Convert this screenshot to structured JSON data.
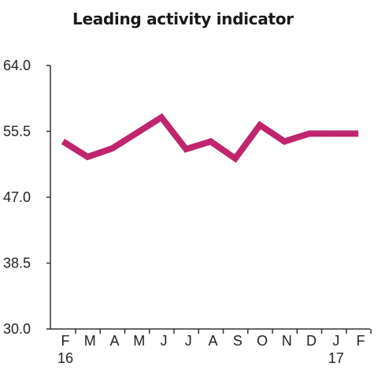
{
  "chart_data": {
    "type": "line",
    "title": "Leading activity indicator",
    "xlabel": "",
    "ylabel": "",
    "categories": [
      "F",
      "M",
      "A",
      "M",
      "J",
      "J",
      "A",
      "S",
      "O",
      "N",
      "D",
      "J",
      "F"
    ],
    "year_labels": [
      {
        "category_index": 0,
        "label": "16"
      },
      {
        "category_index": 11,
        "label": "17"
      }
    ],
    "series": [
      {
        "values": [
          54.2,
          52.2,
          53.3,
          55.3,
          57.3,
          53.2,
          54.2,
          52.0,
          56.3,
          54.2,
          55.2,
          55.2,
          55.2
        ]
      }
    ],
    "ylim": [
      30.0,
      64.0
    ],
    "yticks": [
      "64.0",
      "55.5",
      "47.0",
      "38.5",
      "30.0"
    ],
    "grid": false,
    "legend": "none",
    "line_color": "#c0256e",
    "axis_color": "#333333"
  }
}
